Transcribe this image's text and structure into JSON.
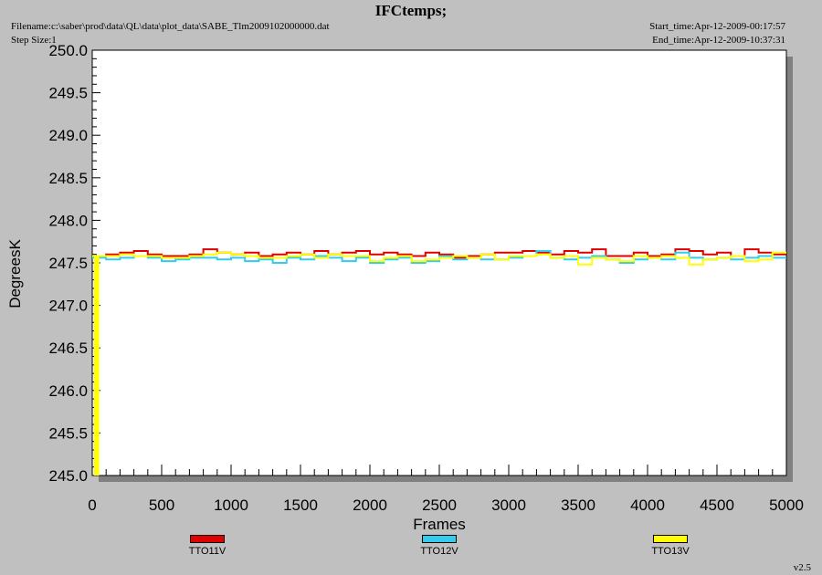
{
  "header": {
    "title": "IFCtemps;",
    "filename": "Filename:c:\\saber\\prod\\data\\QL\\data\\plot_data\\SABE_Tlm2009102000000.dat",
    "step_size": "Step Size:1",
    "start_time": "Start_time:Apr-12-2009-00:17:57",
    "end_time": "End_time:Apr-12-2009-10:37:31"
  },
  "version": "v2.5",
  "chart_data": {
    "type": "line",
    "title": "IFCtemps;",
    "xlabel": "Frames",
    "ylabel": "DegreesK",
    "xlim": [
      0,
      5000
    ],
    "ylim": [
      245.0,
      250.0
    ],
    "x_ticks": [
      "0",
      "500",
      "1000",
      "1500",
      "2000",
      "2500",
      "3000",
      "3500",
      "4000",
      "4500",
      "5000"
    ],
    "y_ticks": [
      "245.0",
      "245.5",
      "246.0",
      "246.5",
      "247.0",
      "247.5",
      "248.0",
      "248.5",
      "249.0",
      "249.5",
      "250.0"
    ],
    "grid": false,
    "legend_position": "bottom",
    "x": [
      0,
      100,
      200,
      300,
      400,
      500,
      600,
      700,
      800,
      900,
      1000,
      1100,
      1200,
      1300,
      1400,
      1500,
      1600,
      1700,
      1800,
      1900,
      2000,
      2100,
      2200,
      2300,
      2400,
      2500,
      2600,
      2700,
      2800,
      2900,
      3000,
      3100,
      3200,
      3300,
      3400,
      3500,
      3600,
      3700,
      3800,
      3900,
      4000,
      4100,
      4200,
      4300,
      4400,
      4500,
      4600,
      4700,
      4800,
      4900
    ],
    "series": [
      {
        "name": "TTO11V",
        "color": "#e00000",
        "values": [
          247.58,
          247.6,
          247.62,
          247.64,
          247.6,
          247.58,
          247.58,
          247.6,
          247.66,
          247.62,
          247.6,
          247.62,
          247.58,
          247.6,
          247.62,
          247.6,
          247.64,
          247.6,
          247.62,
          247.64,
          247.6,
          247.62,
          247.6,
          247.58,
          247.62,
          247.6,
          247.56,
          247.58,
          247.6,
          247.62,
          247.62,
          247.64,
          247.62,
          247.6,
          247.64,
          247.62,
          247.66,
          247.58,
          247.58,
          247.62,
          247.58,
          247.6,
          247.66,
          247.64,
          247.6,
          247.62,
          247.58,
          247.66,
          247.62,
          247.6
        ]
      },
      {
        "name": "TTO12V",
        "color": "#33ccee",
        "values": [
          247.56,
          247.54,
          247.56,
          247.58,
          247.56,
          247.52,
          247.54,
          247.56,
          247.56,
          247.54,
          247.56,
          247.52,
          247.54,
          247.5,
          247.56,
          247.54,
          247.58,
          247.56,
          247.52,
          247.56,
          247.5,
          247.54,
          247.56,
          247.5,
          247.52,
          247.58,
          247.54,
          247.56,
          247.54,
          247.54,
          247.56,
          247.58,
          247.64,
          247.56,
          247.54,
          247.56,
          247.58,
          247.54,
          247.5,
          247.54,
          247.56,
          247.54,
          247.62,
          247.56,
          247.54,
          247.56,
          247.54,
          247.56,
          247.58,
          247.56
        ]
      },
      {
        "name": "TTO13V",
        "color": "#ffff00",
        "values": [
          247.58,
          247.58,
          247.6,
          247.58,
          247.58,
          247.56,
          247.56,
          247.58,
          247.6,
          247.62,
          247.6,
          247.58,
          247.56,
          247.56,
          247.58,
          247.6,
          247.56,
          247.6,
          247.58,
          247.58,
          247.52,
          247.56,
          247.58,
          247.52,
          247.54,
          247.56,
          247.58,
          247.56,
          247.6,
          247.54,
          247.58,
          247.58,
          247.6,
          247.56,
          247.58,
          247.48,
          247.56,
          247.54,
          247.52,
          247.58,
          247.56,
          247.58,
          247.56,
          247.48,
          247.54,
          247.56,
          247.58,
          247.52,
          247.54,
          247.62
        ]
      }
    ],
    "initial_spike": {
      "series": "TTO13V",
      "x": [
        0,
        50
      ],
      "y": [
        245.0,
        247.58
      ]
    }
  }
}
